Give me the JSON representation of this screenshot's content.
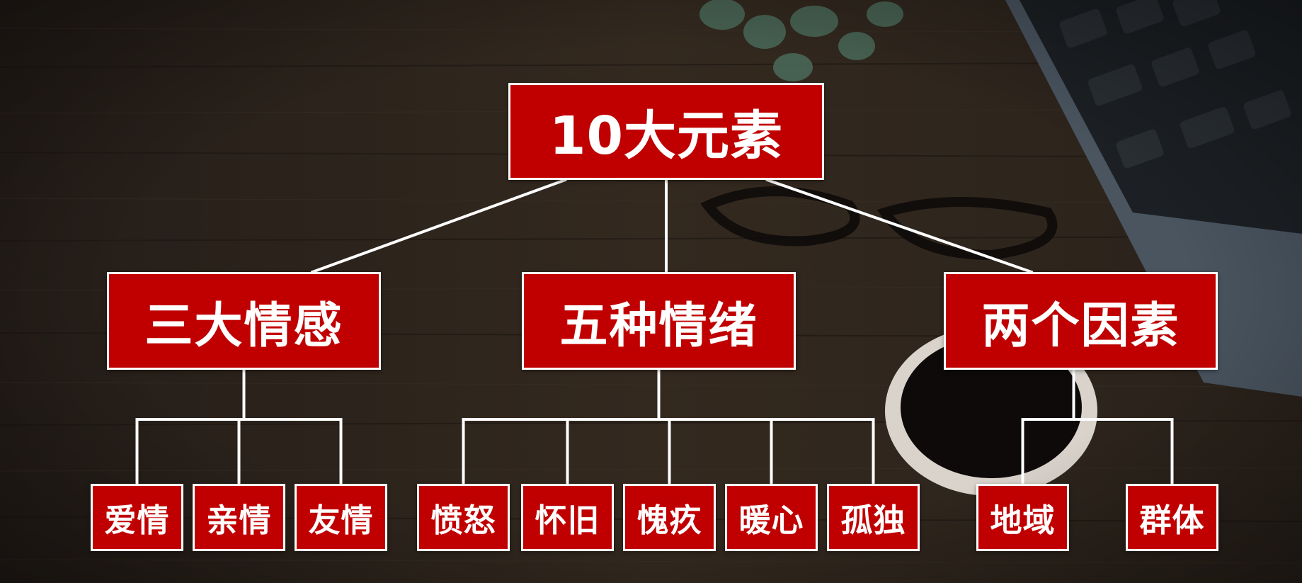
{
  "colors": {
    "node_fill": "#c00000",
    "node_border": "#ffffff",
    "connector": "#ffffff",
    "background": "#2a221c"
  },
  "diagram": {
    "root": {
      "label": "10大元素"
    },
    "branches": [
      {
        "label": "三大情感",
        "children": [
          "爱情",
          "亲情",
          "友情"
        ]
      },
      {
        "label": "五种情绪",
        "children": [
          "愤怒",
          "怀旧",
          "愧疚",
          "暖心",
          "孤独"
        ]
      },
      {
        "label": "两个因素",
        "children": [
          "地域",
          "群体"
        ]
      }
    ]
  }
}
